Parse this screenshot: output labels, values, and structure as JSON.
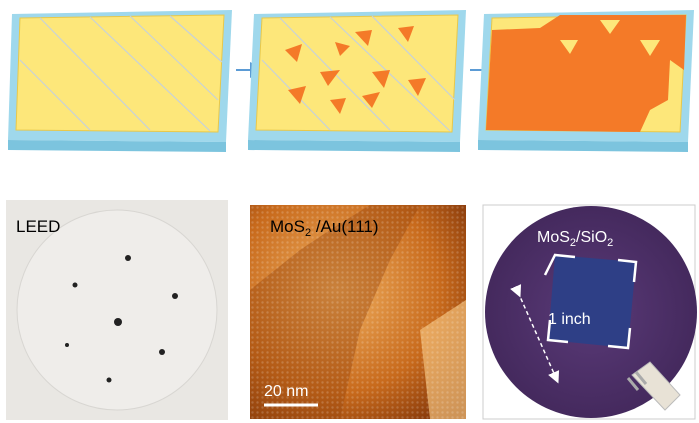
{
  "panels": [
    {
      "label": "LEED"
    },
    {
      "label_parts": [
        "MoS",
        "2",
        " /Au(111)"
      ],
      "scale_bar": "20 nm"
    },
    {
      "label_parts": [
        "MoS",
        "2",
        "/SiO",
        "2"
      ],
      "dimension": "1 inch"
    }
  ]
}
